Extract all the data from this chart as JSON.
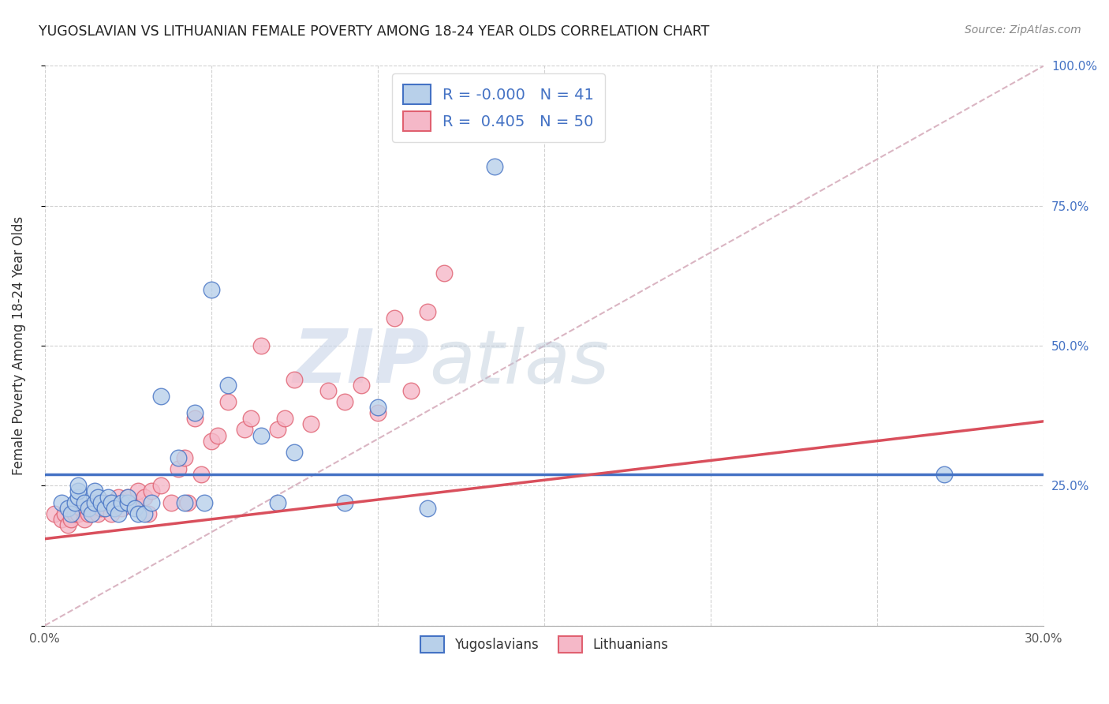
{
  "title": "YUGOSLAVIAN VS LITHUANIAN FEMALE POVERTY AMONG 18-24 YEAR OLDS CORRELATION CHART",
  "source": "Source: ZipAtlas.com",
  "ylabel": "Female Poverty Among 18-24 Year Olds",
  "xlim": [
    0.0,
    0.3
  ],
  "ylim": [
    0.0,
    1.0
  ],
  "legend_R_yugo": "-0.000",
  "legend_N_yugo": "41",
  "legend_R_lith": "0.405",
  "legend_N_lith": "50",
  "color_yugo_fill": "#b8d0ea",
  "color_lith_fill": "#f5b8c8",
  "color_yugo_edge": "#4472c4",
  "color_lith_edge": "#e06070",
  "color_yugo_line": "#4472c4",
  "color_lith_line": "#d94f5c",
  "color_diag_line": "#d4a8b8",
  "watermark_zip": "ZIP",
  "watermark_atlas": "atlas",
  "yugo_scatter_x": [
    0.005,
    0.007,
    0.008,
    0.009,
    0.01,
    0.01,
    0.01,
    0.012,
    0.013,
    0.014,
    0.015,
    0.015,
    0.016,
    0.017,
    0.018,
    0.019,
    0.02,
    0.021,
    0.022,
    0.023,
    0.025,
    0.025,
    0.027,
    0.028,
    0.03,
    0.032,
    0.035,
    0.04,
    0.042,
    0.045,
    0.048,
    0.05,
    0.055,
    0.065,
    0.07,
    0.075,
    0.09,
    0.1,
    0.115,
    0.135,
    0.27
  ],
  "yugo_scatter_y": [
    0.22,
    0.21,
    0.2,
    0.22,
    0.23,
    0.24,
    0.25,
    0.22,
    0.21,
    0.2,
    0.22,
    0.24,
    0.23,
    0.22,
    0.21,
    0.23,
    0.22,
    0.21,
    0.2,
    0.22,
    0.22,
    0.23,
    0.21,
    0.2,
    0.2,
    0.22,
    0.41,
    0.3,
    0.22,
    0.38,
    0.22,
    0.6,
    0.43,
    0.34,
    0.22,
    0.31,
    0.22,
    0.39,
    0.21,
    0.82,
    0.27
  ],
  "lith_scatter_x": [
    0.003,
    0.005,
    0.006,
    0.007,
    0.008,
    0.009,
    0.01,
    0.011,
    0.012,
    0.013,
    0.014,
    0.015,
    0.016,
    0.017,
    0.018,
    0.02,
    0.021,
    0.022,
    0.023,
    0.025,
    0.027,
    0.028,
    0.03,
    0.031,
    0.032,
    0.035,
    0.038,
    0.04,
    0.042,
    0.043,
    0.045,
    0.047,
    0.05,
    0.052,
    0.055,
    0.06,
    0.062,
    0.065,
    0.07,
    0.072,
    0.075,
    0.08,
    0.085,
    0.09,
    0.095,
    0.1,
    0.105,
    0.11,
    0.115,
    0.12
  ],
  "lith_scatter_y": [
    0.2,
    0.19,
    0.2,
    0.18,
    0.19,
    0.2,
    0.2,
    0.21,
    0.19,
    0.2,
    0.21,
    0.22,
    0.2,
    0.21,
    0.22,
    0.2,
    0.22,
    0.23,
    0.21,
    0.23,
    0.22,
    0.24,
    0.23,
    0.2,
    0.24,
    0.25,
    0.22,
    0.28,
    0.3,
    0.22,
    0.37,
    0.27,
    0.33,
    0.34,
    0.4,
    0.35,
    0.37,
    0.5,
    0.35,
    0.37,
    0.44,
    0.36,
    0.42,
    0.4,
    0.43,
    0.38,
    0.55,
    0.42,
    0.56,
    0.63
  ],
  "yugo_line_y": 0.27,
  "lith_line_x0": 0.0,
  "lith_line_y0": 0.155,
  "lith_line_x1": 0.3,
  "lith_line_y1": 0.365
}
